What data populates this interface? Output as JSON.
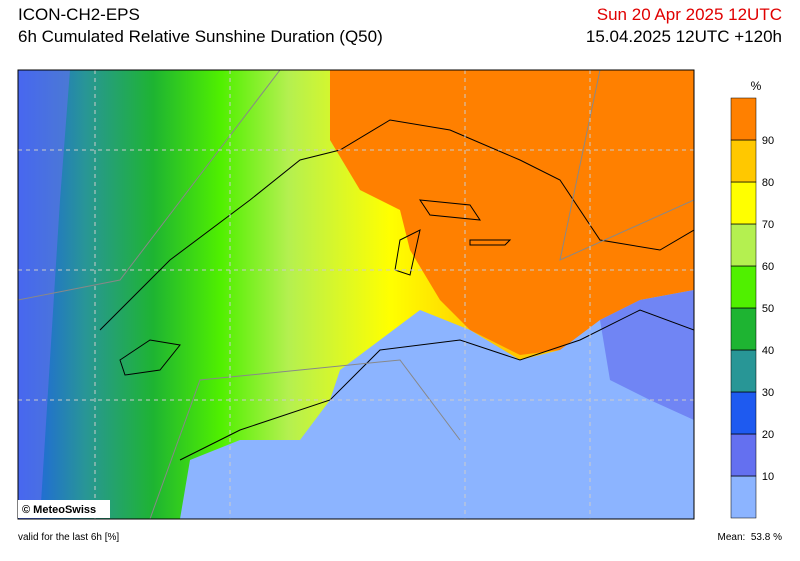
{
  "header": {
    "model": "ICON-CH2-EPS",
    "title": "6h Cumulated Relative Sunshine Duration (Q50)",
    "valid_date": "Sun 20 Apr 2025 12UTC",
    "run": "15.04.2025 12UTC +120h"
  },
  "legend": {
    "unit": "%",
    "range": [
      0,
      100
    ],
    "ticks": [
      10,
      20,
      30,
      40,
      50,
      60,
      70,
      80,
      90
    ],
    "colors": [
      "#8cb4ff",
      "#6470f0",
      "#1e5af0",
      "#289696",
      "#1eb432",
      "#50f000",
      "#b4f050",
      "#ffff00",
      "#ffc800",
      "#ff8000"
    ]
  },
  "map": {
    "copyright": "© MeteoSwiss"
  },
  "footer": {
    "note": "valid for the last 6h [%]",
    "mean_label": "Mean:",
    "mean": 53.8,
    "mean_unit": "%"
  }
}
